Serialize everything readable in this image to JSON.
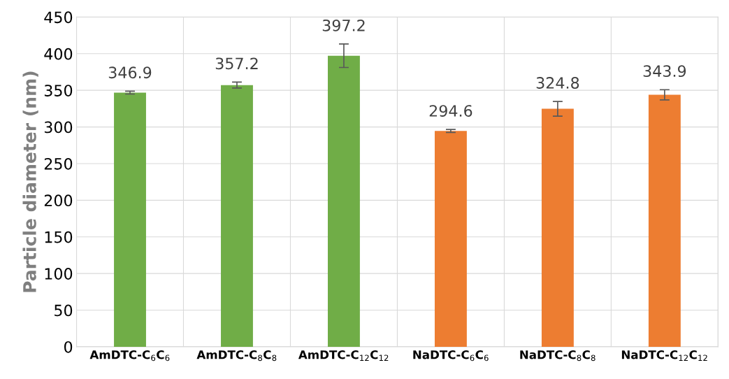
{
  "chart_data": {
    "type": "bar",
    "ylabel": "Particle diameter (nm)",
    "categories": [
      "AmDTC-C$_{6}$C$_{6}$",
      "AmDTC-C$_{8}$C$_{8}$",
      "AmDTC-C$_{12}$C$_{12}$",
      "NaDTC-C$_{6}$C$_{6}$",
      "NaDTC-C$_{8}$C$_{8}$",
      "NaDTC-C$_{12}$C$_{12}$"
    ],
    "values": [
      346.9,
      357.2,
      397.2,
      294.6,
      324.8,
      343.9
    ],
    "errors": [
      2,
      4,
      16,
      2,
      10,
      7
    ],
    "colors": [
      "#70ad47",
      "#70ad47",
      "#70ad47",
      "#ed7d31",
      "#ed7d31",
      "#ed7d31"
    ],
    "ylim": [
      0,
      450
    ],
    "yticks": [
      0,
      50,
      100,
      150,
      200,
      250,
      300,
      350,
      400,
      450
    ],
    "grid": true,
    "data_labels": true
  }
}
